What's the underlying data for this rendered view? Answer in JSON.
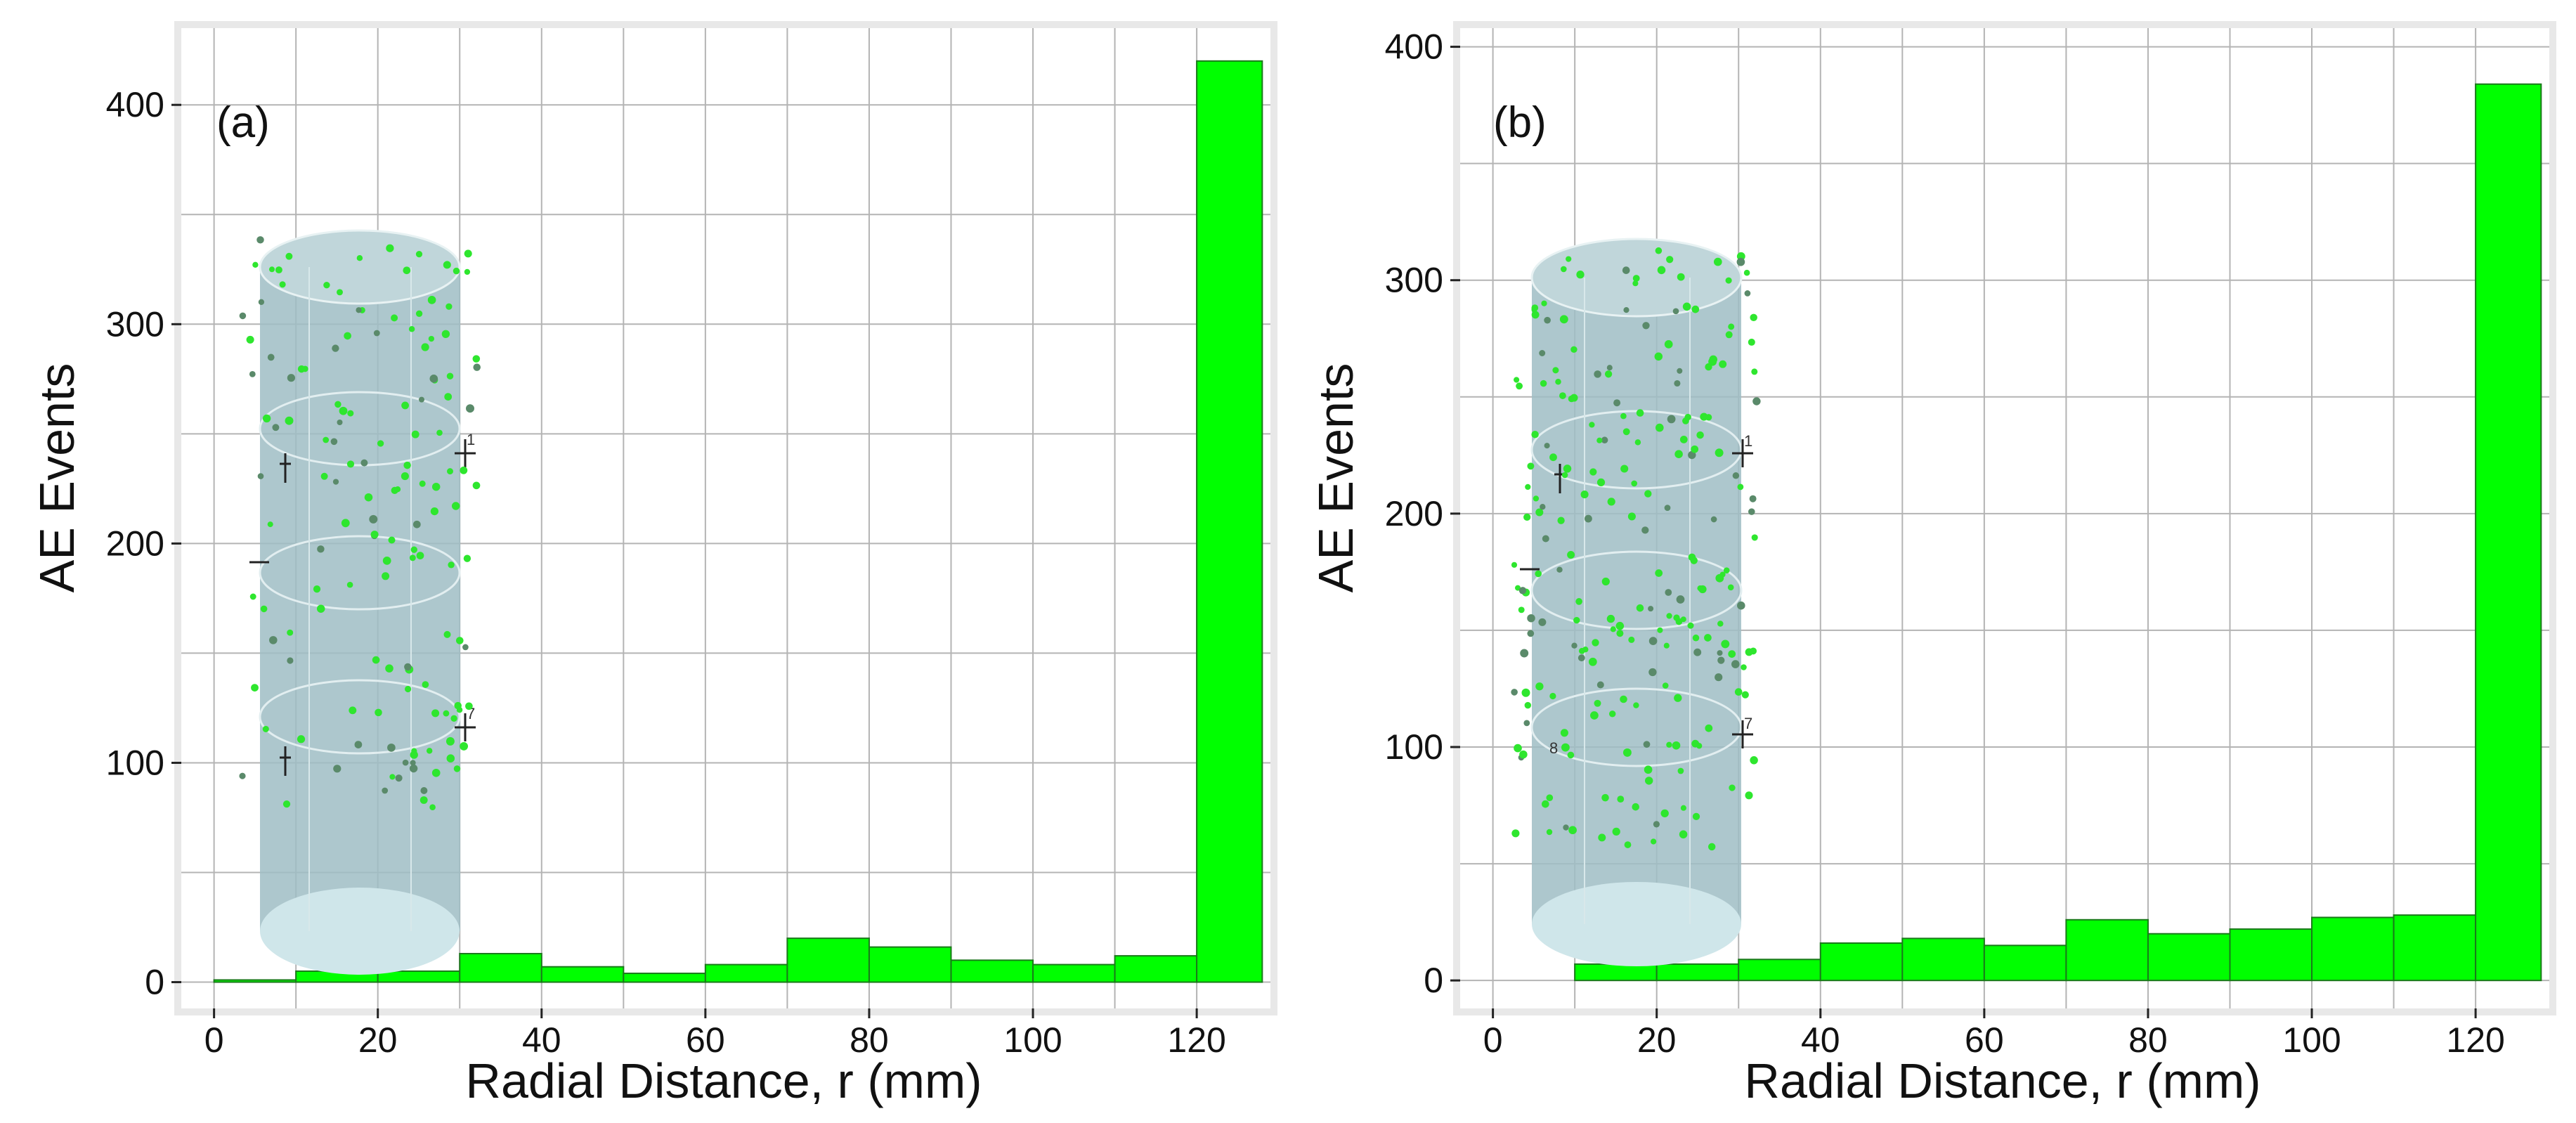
{
  "chart_data": [
    {
      "type": "bar",
      "panel_label": "(a)",
      "xlabel": "Radial Distance, r (mm)",
      "ylabel": "AE Events",
      "xlim": [
        -4,
        129
      ],
      "ylim": [
        -12,
        435
      ],
      "xticks": [
        0,
        20,
        40,
        60,
        80,
        100,
        120
      ],
      "yticks": [
        0,
        100,
        200,
        300,
        400
      ],
      "grid": true,
      "bins": [
        {
          "from": 0,
          "to": 10,
          "value": 1
        },
        {
          "from": 10,
          "to": 20,
          "value": 5
        },
        {
          "from": 20,
          "to": 30,
          "value": 5
        },
        {
          "from": 30,
          "to": 40,
          "value": 13
        },
        {
          "from": 40,
          "to": 50,
          "value": 7
        },
        {
          "from": 50,
          "to": 60,
          "value": 4
        },
        {
          "from": 60,
          "to": 70,
          "value": 8
        },
        {
          "from": 70,
          "to": 80,
          "value": 20
        },
        {
          "from": 80,
          "to": 90,
          "value": 16
        },
        {
          "from": 90,
          "to": 100,
          "value": 10
        },
        {
          "from": 100,
          "to": 110,
          "value": 8
        },
        {
          "from": 110,
          "to": 120,
          "value": 12
        },
        {
          "from": 120,
          "to": 128,
          "value": 420
        }
      ],
      "inset": {
        "sensor_labels": [
          "1",
          "7"
        ]
      }
    },
    {
      "type": "bar",
      "panel_label": "(b)",
      "xlabel": "Radial Distance, r (mm)",
      "ylabel": "AE Events",
      "xlim": [
        -4,
        129
      ],
      "ylim": [
        -12,
        408
      ],
      "xticks": [
        0,
        20,
        40,
        60,
        80,
        100,
        120
      ],
      "yticks": [
        0,
        100,
        200,
        300,
        400
      ],
      "grid": true,
      "bins": [
        {
          "from": 10,
          "to": 20,
          "value": 7
        },
        {
          "from": 20,
          "to": 30,
          "value": 7
        },
        {
          "from": 30,
          "to": 40,
          "value": 9
        },
        {
          "from": 40,
          "to": 50,
          "value": 16
        },
        {
          "from": 50,
          "to": 60,
          "value": 18
        },
        {
          "from": 60,
          "to": 70,
          "value": 15
        },
        {
          "from": 70,
          "to": 80,
          "value": 26
        },
        {
          "from": 80,
          "to": 90,
          "value": 20
        },
        {
          "from": 90,
          "to": 100,
          "value": 22
        },
        {
          "from": 100,
          "to": 110,
          "value": 27
        },
        {
          "from": 110,
          "to": 120,
          "value": 28
        },
        {
          "from": 120,
          "to": 128,
          "value": 384
        }
      ],
      "inset": {
        "sensor_labels": [
          "1",
          "7",
          "8"
        ]
      }
    }
  ],
  "colors": {
    "bar_fill": "#00ff00",
    "bar_stroke": "#1a7a1a",
    "grid": "#b4b4b4",
    "frame": "#e6e6e6",
    "cylinder": "#9fbdc4"
  }
}
